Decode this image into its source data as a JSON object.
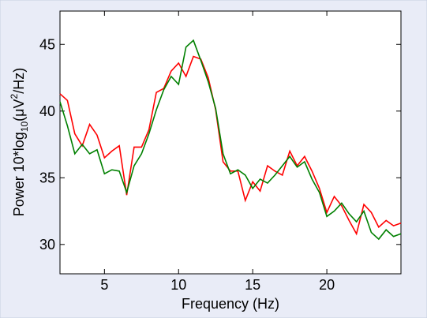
{
  "chart_data": {
    "type": "line",
    "xlabel": "Frequency (Hz)",
    "ylabel_parts": [
      "Power 10*log",
      "10",
      "(μV",
      "2",
      "/Hz)"
    ],
    "x": [
      2,
      2.5,
      3,
      3.5,
      4,
      4.5,
      5,
      5.5,
      6,
      6.5,
      7,
      7.5,
      8,
      8.5,
      9,
      9.5,
      10,
      10.5,
      11,
      11.5,
      12,
      12.5,
      13,
      13.5,
      14,
      14.5,
      15,
      15.5,
      16,
      16.5,
      17,
      17.5,
      18,
      18.5,
      19,
      19.5,
      20,
      20.5,
      21,
      21.5,
      22,
      22.5,
      23,
      23.5,
      24,
      24.5,
      25
    ],
    "series": [
      {
        "color": "#ff0000",
        "values": [
          41.3,
          40.8,
          38.3,
          37.4,
          39.0,
          38.2,
          36.5,
          37.0,
          37.4,
          33.7,
          37.3,
          37.3,
          38.6,
          41.4,
          41.7,
          43.0,
          43.6,
          42.6,
          44.1,
          43.9,
          42.5,
          40.1,
          36.2,
          35.5,
          35.5,
          33.3,
          34.7,
          34.0,
          35.9,
          35.5,
          35.2,
          37.0,
          35.9,
          36.6,
          35.5,
          34.2,
          32.4,
          33.6,
          32.9,
          31.8,
          30.8,
          33.0,
          32.4,
          31.3,
          31.8,
          31.4,
          31.6
        ]
      },
      {
        "color": "#008000",
        "values": [
          40.7,
          38.9,
          36.8,
          37.5,
          36.8,
          37.1,
          35.3,
          35.6,
          35.5,
          33.9,
          35.9,
          36.8,
          38.3,
          40.1,
          41.6,
          42.6,
          42.0,
          44.8,
          45.3,
          43.8,
          42.2,
          40.2,
          36.8,
          35.3,
          35.6,
          35.2,
          34.2,
          34.9,
          34.6,
          35.2,
          35.9,
          36.6,
          35.8,
          36.2,
          34.9,
          33.9,
          32.1,
          32.5,
          33.1,
          32.3,
          31.7,
          32.5,
          30.9,
          30.4,
          31.1,
          30.6,
          30.8
        ]
      }
    ],
    "xlim": [
      2,
      25
    ],
    "ylim": [
      27.8,
      47.5
    ],
    "xticks": [
      5,
      10,
      15,
      20
    ],
    "yticks": [
      30,
      35,
      40,
      45
    ]
  }
}
